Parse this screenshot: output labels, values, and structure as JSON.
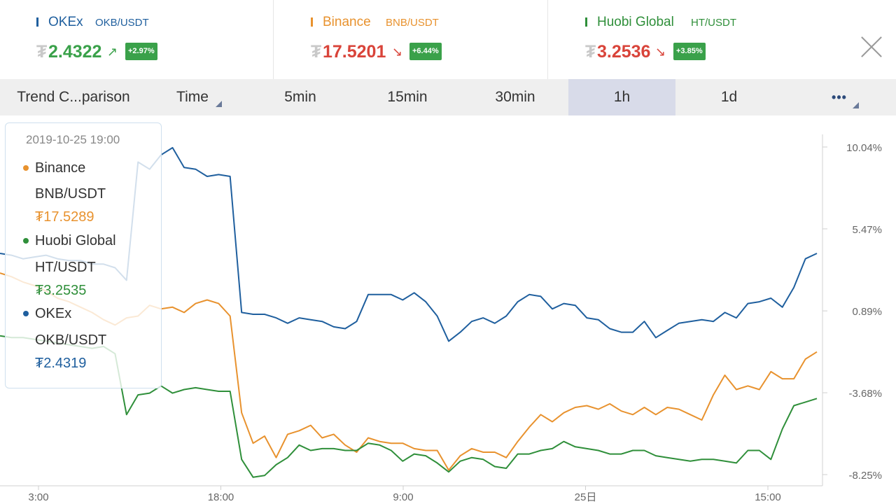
{
  "tickers": [
    {
      "exchange": "OKEx",
      "pair": "OKB/USDT",
      "currency": "₮",
      "price": "2.4322",
      "arrow": "↗",
      "change": "+2.97%",
      "color": "#1f5f9e",
      "price_color": "#3aa14a"
    },
    {
      "exchange": "Binance",
      "pair": "BNB/USDT",
      "currency": "₮",
      "price": "17.5201",
      "arrow": "↘",
      "change": "+6.44%",
      "color": "#e8922e",
      "price_color": "#d9443a"
    },
    {
      "exchange": "Huobi Global",
      "pair": "HT/USDT",
      "currency": "₮",
      "price": "3.2536",
      "arrow": "↘",
      "change": "+3.85%",
      "color": "#2f8f3a",
      "price_color": "#d9443a"
    }
  ],
  "close_icon": "close-icon",
  "toolbar": {
    "title": "Trend C...parison",
    "time": "Time",
    "intervals": [
      "5min",
      "15min",
      "30min",
      "1h",
      "1d"
    ],
    "selected": "1h",
    "more": "•••"
  },
  "tooltip": {
    "timestamp": "2019-10-25 19:00",
    "items": [
      {
        "exchange": "Binance",
        "pair": "BNB/USDT",
        "value": "₮17.5289",
        "color": "#e8922e"
      },
      {
        "exchange": "Huobi Global",
        "pair": "HT/USDT",
        "value": "₮3.2535",
        "color": "#2f8f3a"
      },
      {
        "exchange": "OKEx",
        "pair": "OKB/USDT",
        "value": "₮2.4319",
        "color": "#1f5f9e"
      }
    ]
  },
  "chart_data": {
    "type": "line",
    "title": "",
    "y_tick_labels": [
      "10.04%",
      "5.47%",
      "0.89%",
      "-3.68%",
      "-8.25%"
    ],
    "y_ticks": [
      10.04,
      5.47,
      0.89,
      -3.68,
      -8.25
    ],
    "ylim": [
      -8.25,
      10.04
    ],
    "x_tick_labels": [
      "3:00",
      "18:00",
      "9:00",
      "25日",
      "15:00"
    ],
    "x_tick_index": [
      0,
      15,
      30,
      45,
      60
    ],
    "grid": false,
    "series": [
      {
        "name": "OKEx",
        "color": "#1f5f9e",
        "values": [
          4.1,
          4.0,
          3.8,
          3.9,
          4.0,
          3.8,
          3.7,
          3.7,
          3.5,
          3.5,
          3.3,
          2.6,
          9.2,
          8.8,
          9.6,
          10.0,
          8.9,
          8.8,
          8.4,
          8.5,
          8.4,
          0.8,
          0.7,
          0.7,
          0.5,
          0.2,
          0.5,
          0.4,
          0.3,
          0.0,
          -0.1,
          0.3,
          1.8,
          1.8,
          1.8,
          1.5,
          1.9,
          1.4,
          0.6,
          -0.8,
          -0.3,
          0.3,
          0.5,
          0.2,
          0.6,
          1.4,
          1.8,
          1.7,
          1.0,
          1.3,
          1.2,
          0.5,
          0.4,
          -0.1,
          -0.3,
          -0.3,
          0.3,
          -0.6,
          -0.2,
          0.2,
          0.3,
          0.4,
          0.3,
          0.8,
          0.5,
          1.3,
          1.4,
          1.6,
          1.1,
          2.2,
          3.8,
          4.1
        ]
      },
      {
        "name": "Binance",
        "color": "#e8922e",
        "values": [
          3.0,
          2.8,
          2.5,
          2.3,
          2.0,
          1.6,
          1.4,
          1.1,
          0.8,
          0.4,
          0.1,
          0.5,
          0.6,
          1.2,
          1.0,
          1.1,
          0.8,
          1.3,
          1.5,
          1.3,
          0.6,
          -4.8,
          -6.5,
          -6.1,
          -7.3,
          -6.0,
          -5.8,
          -5.5,
          -6.2,
          -6.0,
          -6.6,
          -7.0,
          -6.2,
          -6.4,
          -6.5,
          -6.5,
          -6.8,
          -6.9,
          -6.9,
          -8.0,
          -7.2,
          -6.8,
          -7.0,
          -7.0,
          -7.3,
          -6.4,
          -5.6,
          -4.9,
          -5.3,
          -4.8,
          -4.5,
          -4.4,
          -4.6,
          -4.3,
          -4.7,
          -4.9,
          -4.5,
          -4.9,
          -4.5,
          -4.6,
          -4.9,
          -5.2,
          -3.8,
          -2.7,
          -3.5,
          -3.3,
          -3.5,
          -2.5,
          -2.9,
          -2.9,
          -1.8,
          -1.4
        ]
      },
      {
        "name": "Huobi Global",
        "color": "#2f8f3a",
        "values": [
          -0.5,
          -0.6,
          -0.6,
          -0.7,
          -0.8,
          -0.9,
          -1.0,
          -1.1,
          -1.2,
          -1.1,
          -1.5,
          -4.9,
          -3.8,
          -3.7,
          -3.3,
          -3.7,
          -3.5,
          -3.4,
          -3.5,
          -3.6,
          -3.6,
          -7.4,
          -8.4,
          -8.3,
          -7.7,
          -7.3,
          -6.6,
          -6.9,
          -6.8,
          -6.8,
          -6.9,
          -6.9,
          -6.5,
          -6.6,
          -6.9,
          -7.5,
          -7.1,
          -7.2,
          -7.6,
          -8.1,
          -7.5,
          -7.3,
          -7.4,
          -7.8,
          -7.9,
          -7.1,
          -7.1,
          -6.9,
          -6.8,
          -6.4,
          -6.7,
          -6.8,
          -6.9,
          -7.1,
          -7.1,
          -6.9,
          -6.9,
          -7.2,
          -7.3,
          -7.4,
          -7.5,
          -7.4,
          -7.4,
          -7.5,
          -7.6,
          -6.9,
          -6.9,
          -7.4,
          -5.7,
          -4.4,
          -4.2,
          -4.0
        ]
      }
    ]
  }
}
